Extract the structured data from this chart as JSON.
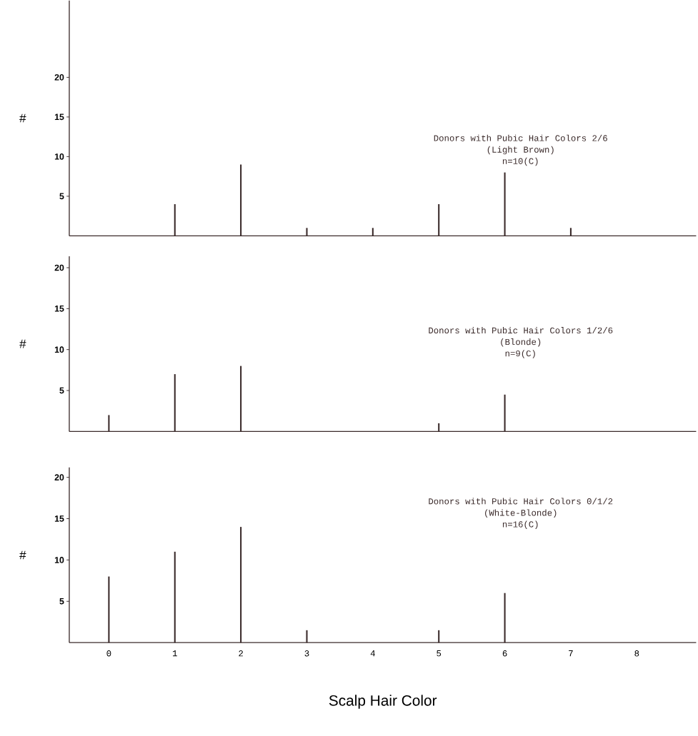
{
  "chart_data": [
    {
      "type": "bar",
      "title": "Donors with Pubic Hair Colors 2/6",
      "subtitle": "(Light Brown)",
      "annotations": [
        "n=10(C)"
      ],
      "ylabel": "#",
      "x": [
        1,
        2,
        3,
        4,
        5,
        6,
        7
      ],
      "values": [
        4,
        9,
        1,
        1,
        4,
        8,
        1
      ],
      "color": "#3b2b2b",
      "xlim": [
        -0.6,
        8.9
      ],
      "xticks": [
        0,
        1,
        2,
        3,
        4,
        5,
        6,
        7,
        8
      ],
      "ylim": [
        0,
        29.7
      ],
      "yticks": [
        5,
        10,
        15,
        20
      ],
      "tick_labels": "y"
    },
    {
      "type": "bar",
      "title": "Donors with Pubic Hair Colors 1/2/6",
      "subtitle": "(Blonde)",
      "annotations": [
        "n=9(C)"
      ],
      "ylabel": "#",
      "x": [
        0,
        1,
        2,
        5,
        6
      ],
      "values": [
        2,
        7,
        8,
        1,
        4.5
      ],
      "color": "#3b2b2b",
      "xlim": [
        -0.6,
        8.9
      ],
      "xticks": [
        0,
        1,
        2,
        3,
        4,
        5,
        6,
        7,
        8
      ],
      "ylim": [
        0,
        21.4
      ],
      "yticks": [
        5,
        10,
        15,
        20
      ],
      "tick_labels": "y"
    },
    {
      "type": "bar",
      "title": "Donors with Pubic Hair Colors 0/1/2",
      "subtitle": "(White-Blonde)",
      "annotations": [
        "n=16(C)"
      ],
      "ylabel": "#",
      "xlabel": "Scalp Hair Color",
      "x": [
        0,
        1,
        2,
        3,
        5,
        6
      ],
      "values": [
        8,
        11,
        14,
        1.5,
        1.5,
        6
      ],
      "color": "#3b2b2b",
      "xlim": [
        -0.6,
        8.9
      ],
      "xticks": [
        0,
        1,
        2,
        3,
        4,
        5,
        6,
        7,
        8
      ],
      "ylim": [
        0,
        21.2
      ],
      "yticks": [
        5,
        10,
        15,
        20
      ]
    }
  ]
}
